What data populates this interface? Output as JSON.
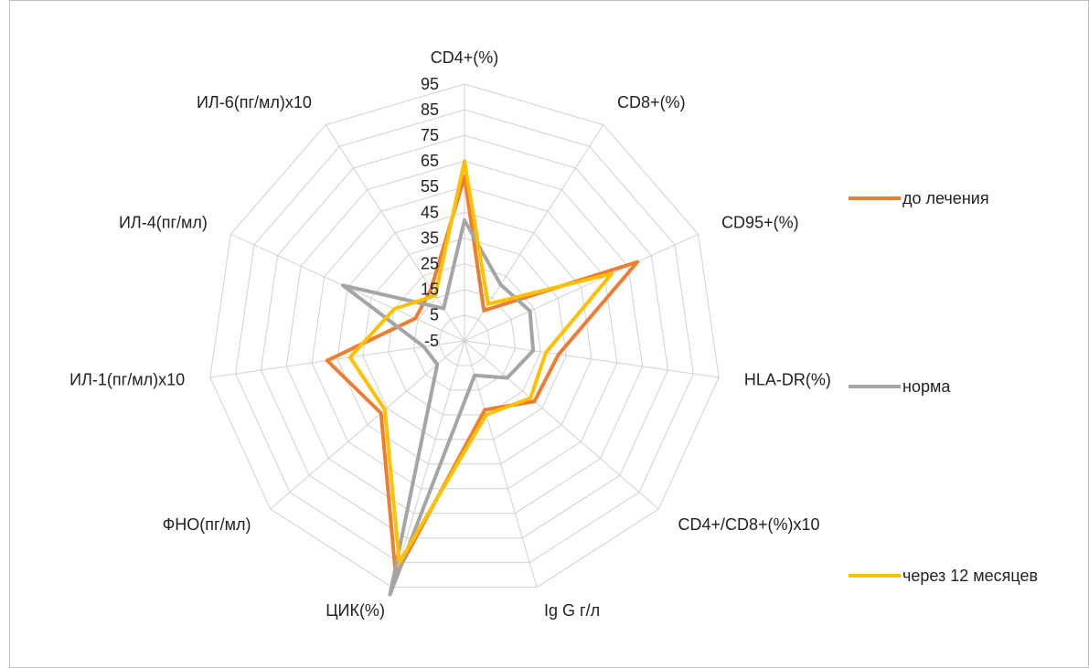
{
  "chart_data": {
    "type": "radar",
    "categories": [
      "CD4+(%)",
      "CD8+(%)",
      "CD95+(%)",
      "HLA-DR(%)",
      "CD4+/CD8+(%)x10",
      "Ig G г/л",
      "ЦИК(%)",
      "ФНО(пг/мл)",
      "ИЛ-1(пг/мл)x10",
      "ИЛ-4(пг/мл)",
      "ИЛ-6(пг/мл)x10"
    ],
    "series": [
      {
        "name": "до лечения",
        "color": "#ED7D31",
        "values": [
          59,
          9,
          69,
          32,
          31,
          23,
          90,
          38,
          49,
          16,
          19
        ]
      },
      {
        "name": "норма",
        "color": "#A5A5A5",
        "values": [
          42,
          21,
          23,
          22,
          17,
          9,
          98,
          9,
          11,
          47,
          10
        ]
      },
      {
        "name": "через 12 месяцев",
        "color": "#FFC000",
        "values": [
          65,
          12,
          58,
          27,
          29,
          25,
          85,
          36,
          40,
          25,
          16
        ]
      }
    ],
    "ylim": [
      -5,
      95
    ],
    "yticks": [
      -5,
      5,
      15,
      25,
      35,
      45,
      55,
      65,
      75,
      85,
      95
    ],
    "grid": true,
    "legend": "right"
  }
}
